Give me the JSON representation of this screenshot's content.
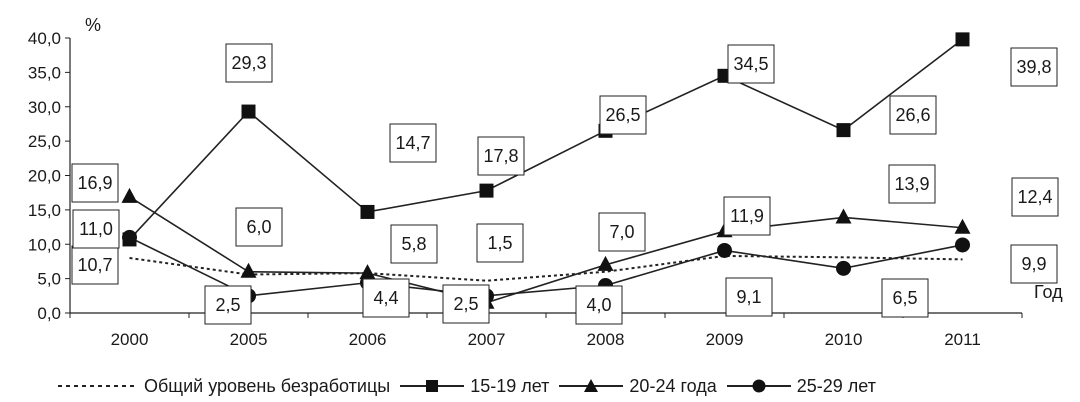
{
  "chart_data": {
    "type": "line",
    "categories": [
      "2000",
      "2005",
      "2006",
      "2007",
      "2008",
      "2009",
      "2010",
      "2011"
    ],
    "ylabel": "%",
    "xlabel": "Год",
    "ylim": [
      0,
      40
    ],
    "yticks": [
      "0,0",
      "5,0",
      "10,0",
      "15,0",
      "20,0",
      "25,0",
      "30,0",
      "35,0",
      "40,0"
    ],
    "grid": false,
    "legend_position": "bottom",
    "series": [
      {
        "name": "Общий уровень безработицы",
        "marker": "none",
        "dash": "dotted",
        "values": [
          8.0,
          5.6,
          5.8,
          4.7,
          6.0,
          8.3,
          8.1,
          7.8
        ],
        "labels": []
      },
      {
        "name": "15-19 лет",
        "marker": "square",
        "dash": "solid",
        "values": [
          10.7,
          29.3,
          14.7,
          17.8,
          26.5,
          34.5,
          26.6,
          39.8
        ],
        "labels": [
          "10,7",
          "29,3",
          "14,7",
          "17,8",
          "26,5",
          "34,5",
          "26,6",
          "39,8"
        ]
      },
      {
        "name": "20-24 года",
        "marker": "triangle",
        "dash": "solid",
        "values": [
          16.9,
          6.0,
          5.8,
          1.5,
          7.0,
          11.9,
          13.9,
          12.4
        ],
        "labels": [
          "16,9",
          "6,0",
          "5,8",
          "1,5",
          "7,0",
          "11,9",
          "13,9",
          "12,4"
        ]
      },
      {
        "name": "25-29 лет",
        "marker": "circle",
        "dash": "solid",
        "values": [
          11.0,
          2.5,
          4.4,
          2.5,
          4.0,
          9.1,
          6.5,
          9.9
        ],
        "labels": [
          "11,0",
          "2,5",
          "4,4",
          "2,5",
          "4,0",
          "9,1",
          "6,5",
          "9,9"
        ]
      }
    ]
  }
}
